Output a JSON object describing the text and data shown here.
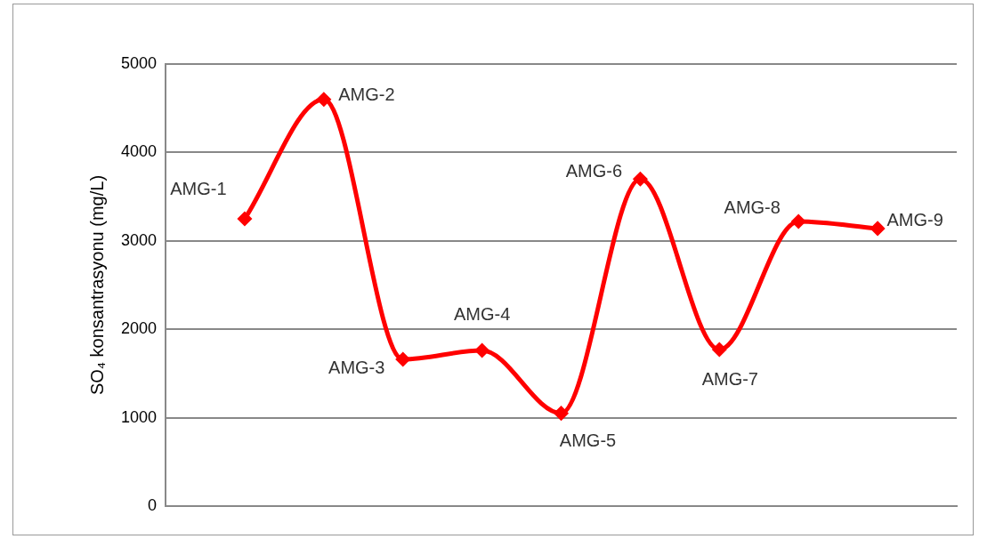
{
  "chart_data": {
    "type": "line",
    "ylabel": "SO₄ konsantrasyonu (mg/L)",
    "categories": [
      null,
      null,
      null,
      null,
      null,
      null,
      null,
      null,
      null
    ],
    "series": [
      {
        "color": "#ff0000",
        "values": [
          3250,
          4600,
          1660,
          1760,
          1050,
          3700,
          1770,
          3220,
          3140
        ]
      }
    ],
    "ylim": [
      0,
      5000
    ],
    "yticks": [
      0,
      1000,
      2000,
      3000,
      4000,
      5000
    ],
    "grid": "y",
    "legend": false,
    "marker": "diamond",
    "line_style": "solid",
    "annotations": [
      "AMG-1",
      "AMG-2",
      "AMG-3",
      "AMG-4",
      "AMG-5",
      "AMG-6",
      "AMG-7",
      "AMG-8",
      "AMG-9"
    ]
  }
}
